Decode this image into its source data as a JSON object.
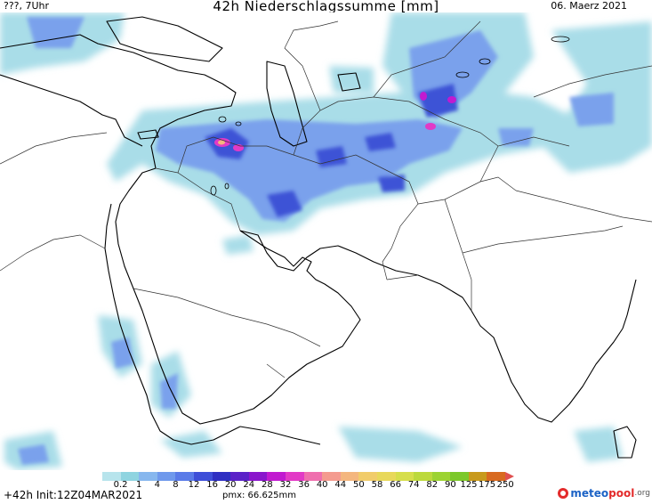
{
  "header": {
    "left": "???, 7Uhr",
    "title": "42h Niederschlagssumme [mm]",
    "date": "06. Maerz 2021"
  },
  "legend": {
    "ticks": [
      "0.2",
      "1",
      "4",
      "8",
      "12",
      "16",
      "20",
      "24",
      "28",
      "32",
      "36",
      "40",
      "44",
      "50",
      "58",
      "66",
      "74",
      "82",
      "90",
      "125",
      "175",
      "250"
    ],
    "colors": [
      "#b7e4ec",
      "#8fd4e0",
      "#87b7ee",
      "#6f99ec",
      "#5a7be8",
      "#3e4fd8",
      "#2f2fc2",
      "#5b22c8",
      "#8a16cc",
      "#c11ad0",
      "#e23ac6",
      "#ef6fae",
      "#f49b8f",
      "#f4b67e",
      "#f1cc6a",
      "#e8d85a",
      "#d6de4b",
      "#bcd93c",
      "#9cd332",
      "#7cc82a",
      "#c89a1c",
      "#d86a20"
    ]
  },
  "footer": {
    "run": "+42h Init:12Z04MAR2021",
    "pmx": "pmx: 66.625mm",
    "logo_part1": "meteo",
    "logo_part2": "pool",
    "logo_part3": ".org"
  }
}
